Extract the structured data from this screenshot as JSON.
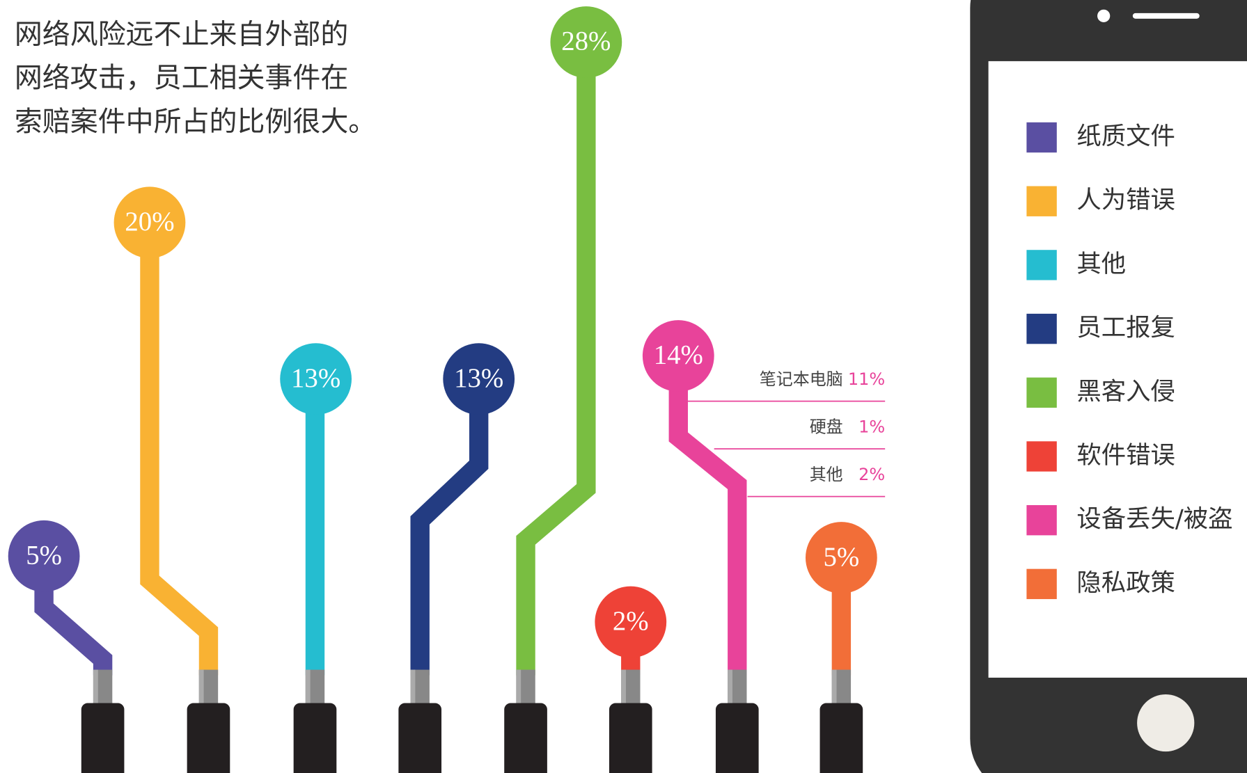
{
  "intro_lines": [
    "网络风险远不止来自外部的",
    "网络攻击，员工相关事件在",
    "索赔案件中所占的比例很大。"
  ],
  "chart_data": {
    "type": "cable",
    "categories": [
      "纸质文件",
      "人为错误",
      "其他",
      "员工报复",
      "黑客入侵",
      "软件错误",
      "设备丢失/被盗",
      "隐私政策"
    ],
    "colors": [
      "#5a4fa2",
      "#f9b233",
      "#25bdd0",
      "#233c82",
      "#79be41",
      "#ee4237",
      "#e8439a",
      "#f26e38"
    ],
    "values": [
      5,
      20,
      13,
      13,
      28,
      2,
      14,
      5
    ],
    "value_labels": [
      "5%",
      "20%",
      "13%",
      "13%",
      "28%",
      "2%",
      "14%",
      "5%"
    ],
    "breakdown": {
      "categories": [
        "笔记本电脑",
        "硬盘",
        "其他"
      ],
      "values": [
        11,
        1,
        2
      ],
      "value_labels": [
        "11%",
        "1%",
        "2%"
      ]
    }
  }
}
